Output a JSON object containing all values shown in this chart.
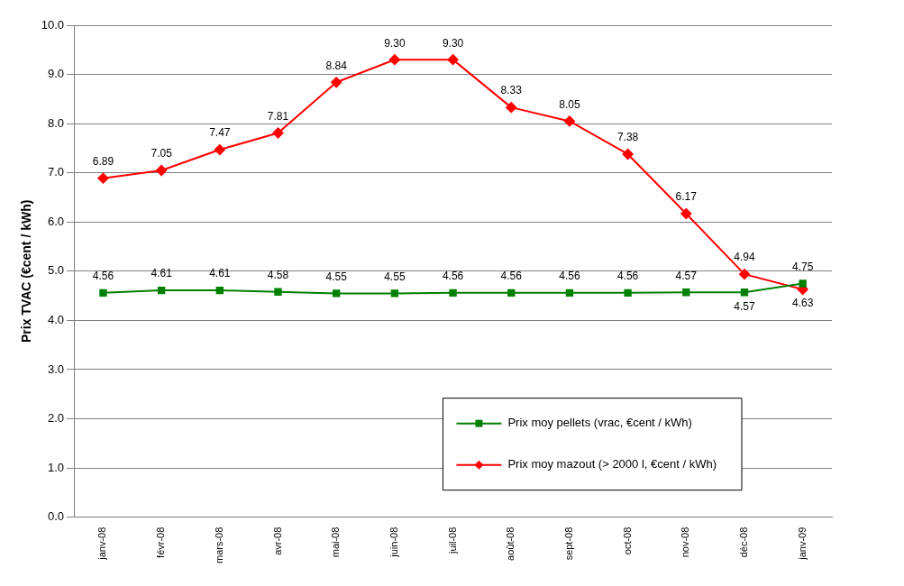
{
  "chart_data": {
    "type": "line",
    "ylabel": "Prix TVAC (€cent / kWh)",
    "categories": [
      "janv-08",
      "févr-08",
      "mars-08",
      "avr-08",
      "mai-08",
      "juin-08",
      "juil-08",
      "août-08",
      "sept-08",
      "oct-08",
      "nov-08",
      "déc-08",
      "janv-09"
    ],
    "series": [
      {
        "name": "Prix moy pellets (vrac, €cent / kWh)",
        "color": "#008000",
        "marker": "square",
        "values": [
          4.56,
          4.61,
          4.61,
          4.58,
          4.55,
          4.55,
          4.56,
          4.56,
          4.56,
          4.56,
          4.57,
          4.57,
          4.75
        ],
        "value_labels": [
          "4.56",
          "4.61",
          "4.61",
          "4.58",
          "4.55",
          "4.55",
          "4.56",
          "4.56",
          "4.56",
          "4.56",
          "4.57",
          "4.57",
          "4.75"
        ]
      },
      {
        "name": "Prix moy mazout (> 2000 l, €cent / kWh)",
        "color": "#ff0000",
        "marker": "diamond",
        "values": [
          6.89,
          7.05,
          7.47,
          7.81,
          8.84,
          9.3,
          9.3,
          8.33,
          8.05,
          7.38,
          6.17,
          4.94,
          4.63
        ],
        "value_labels": [
          "6.89",
          "7.05",
          "7.47",
          "7.81",
          "8.84",
          "9.30",
          "9.30",
          "8.33",
          "8.05",
          "7.38",
          "6.17",
          "4.94",
          "4.63"
        ]
      }
    ],
    "ylim": [
      0,
      10
    ],
    "yticks": [
      {
        "value": 0,
        "label": "0.0"
      },
      {
        "value": 1,
        "label": "1.0"
      },
      {
        "value": 2,
        "label": "2.0"
      },
      {
        "value": 3,
        "label": "3.0"
      },
      {
        "value": 4,
        "label": "4.0"
      },
      {
        "value": 5,
        "label": "5.0"
      },
      {
        "value": 6,
        "label": "6.0"
      },
      {
        "value": 7,
        "label": "7.0"
      },
      {
        "value": 8,
        "label": "8.0"
      },
      {
        "value": 9,
        "label": "9.0"
      },
      {
        "value": 10,
        "label": "10.0"
      }
    ],
    "grid": "y",
    "legend": "bottom right"
  }
}
